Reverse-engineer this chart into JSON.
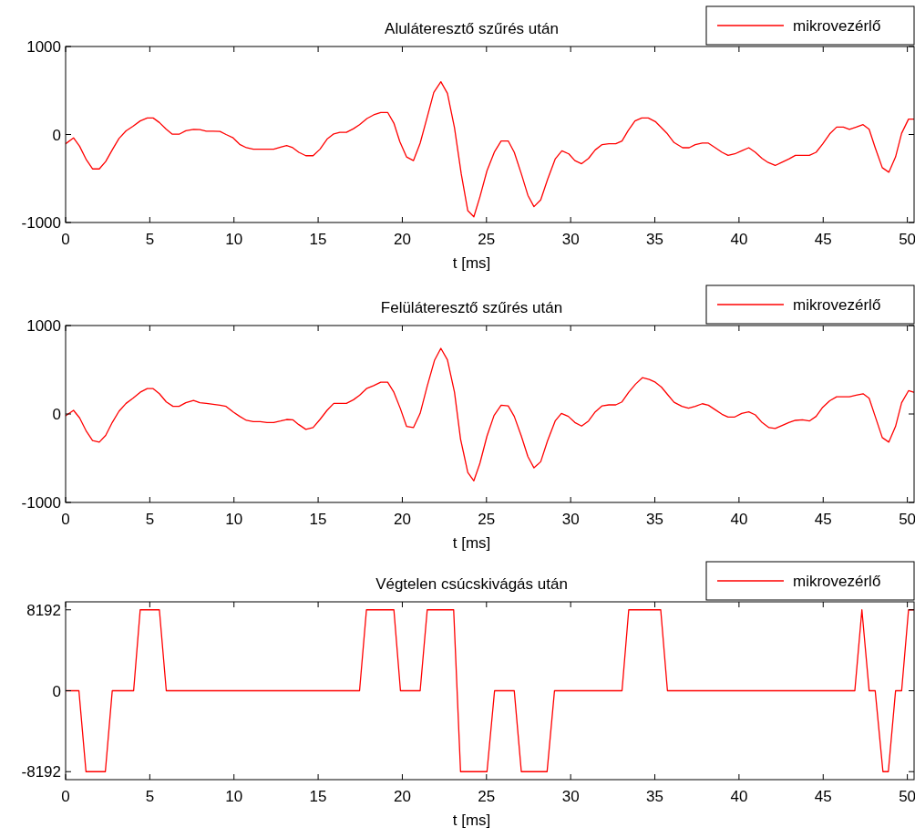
{
  "chart_data": [
    {
      "type": "line",
      "title": "Aluláteresztő szűrés után",
      "xlabel": "t [ms]",
      "xlim": [
        0,
        50.4
      ],
      "xticks": [
        0,
        5,
        10,
        15,
        20,
        25,
        30,
        35,
        40,
        45,
        50
      ],
      "ylim": [
        -1000,
        1000
      ],
      "yticks": [
        -1000,
        0,
        1000
      ],
      "legend": "top right",
      "series": [
        {
          "name": "mikrovezérlő",
          "color": "#ff0000",
          "x": [
            0,
            0.47,
            0.83,
            1.24,
            1.6,
            2.0,
            2.38,
            2.77,
            3.17,
            3.59,
            4.0,
            4.43,
            4.85,
            5.2,
            5.57,
            5.98,
            6.34,
            6.74,
            7.14,
            7.6,
            7.97,
            8.36,
            8.76,
            9.17,
            9.53,
            9.95,
            10.34,
            10.74,
            11.15,
            11.96,
            12.36,
            12.77,
            13.13,
            13.49,
            13.85,
            14.27,
            14.7,
            15.11,
            15.53,
            15.93,
            16.29,
            16.68,
            17.1,
            17.46,
            17.9,
            18.3,
            18.72,
            19.13,
            19.5,
            19.85,
            20.25,
            20.66,
            21.06,
            21.48,
            21.87,
            22.29,
            22.68,
            23.1,
            23.5,
            23.89,
            24.25,
            24.61,
            25.03,
            25.48,
            25.87,
            26.29,
            26.65,
            27.07,
            27.46,
            27.82,
            28.22,
            28.63,
            29.08,
            29.48,
            29.89,
            30.25,
            30.65,
            31.06,
            31.46,
            31.87,
            32.27,
            32.68,
            33.05,
            33.41,
            33.82,
            34.22,
            34.61,
            35.03,
            35.39,
            35.75,
            36.14,
            36.65,
            37.04,
            37.4,
            37.82,
            38.18,
            38.59,
            38.99,
            39.35,
            39.75,
            40.16,
            40.58,
            40.97,
            41.37,
            41.73,
            42.15,
            42.56,
            42.96,
            43.35,
            43.77,
            44.18,
            44.58,
            44.97,
            45.39,
            45.8,
            46.2,
            46.56,
            46.96,
            47.37,
            47.73,
            48.09,
            48.51,
            48.9,
            49.3,
            49.66,
            50.07,
            50.38
          ],
          "values": [
            -105,
            -38,
            -133,
            -290,
            -391,
            -391,
            -307,
            -175,
            -45,
            42,
            94,
            154,
            188,
            188,
            136,
            59,
            3,
            3,
            42,
            59,
            56,
            38,
            38,
            35,
            0,
            -38,
            -112,
            -150,
            -167,
            -167,
            -167,
            -143,
            -126,
            -150,
            -202,
            -241,
            -241,
            -167,
            -52,
            7,
            24,
            24,
            66,
            112,
            181,
            223,
            251,
            251,
            129,
            -80,
            -255,
            -297,
            -98,
            199,
            478,
            600,
            468,
            77,
            -447,
            -866,
            -935,
            -708,
            -412,
            -195,
            -73,
            -73,
            -202,
            -447,
            -691,
            -820,
            -743,
            -510,
            -279,
            -185,
            -220,
            -297,
            -332,
            -272,
            -175,
            -115,
            -105,
            -105,
            -73,
            42,
            154,
            188,
            188,
            147,
            77,
            7,
            -91,
            -150,
            -150,
            -115,
            -98,
            -98,
            -150,
            -202,
            -237,
            -220,
            -185,
            -150,
            -202,
            -272,
            -318,
            -352,
            -314,
            -279,
            -237,
            -237,
            -237,
            -202,
            -108,
            7,
            84,
            84,
            59,
            84,
            112,
            59,
            -150,
            -377,
            -429,
            -255,
            14,
            175,
            175
          ]
        }
      ]
    },
    {
      "type": "line",
      "title": "Felüláteresztő szűrés után",
      "xlabel": "t [ms]",
      "xlim": [
        0,
        50.4
      ],
      "xticks": [
        0,
        5,
        10,
        15,
        20,
        25,
        30,
        35,
        40,
        45,
        50
      ],
      "ylim": [
        -1000,
        1000
      ],
      "yticks": [
        -1000,
        0,
        1000
      ],
      "legend": "top right",
      "series": [
        {
          "name": "mikrovezérlő",
          "color": "#ff0000",
          "x": [
            0,
            0.47,
            0.83,
            1.24,
            1.6,
            2.0,
            2.38,
            2.77,
            3.17,
            3.59,
            4.0,
            4.43,
            4.85,
            5.2,
            5.57,
            5.98,
            6.38,
            6.74,
            7.14,
            7.6,
            7.97,
            8.36,
            8.76,
            9.17,
            9.53,
            9.95,
            10.34,
            10.74,
            11.15,
            11.56,
            11.96,
            12.36,
            12.77,
            13.13,
            13.49,
            13.85,
            14.27,
            14.7,
            15.11,
            15.53,
            15.93,
            16.32,
            16.68,
            17.1,
            17.46,
            17.87,
            18.3,
            18.72,
            19.13,
            19.5,
            19.89,
            20.25,
            20.66,
            21.06,
            21.48,
            21.91,
            22.29,
            22.68,
            23.1,
            23.46,
            23.89,
            24.25,
            24.61,
            25.03,
            25.45,
            25.87,
            26.29,
            26.65,
            27.07,
            27.46,
            27.82,
            28.22,
            28.63,
            29.08,
            29.45,
            29.86,
            30.25,
            30.65,
            31.06,
            31.46,
            31.87,
            32.27,
            32.68,
            33.05,
            33.45,
            33.86,
            34.26,
            34.67,
            35.03,
            35.39,
            35.75,
            36.14,
            36.61,
            37.0,
            37.4,
            37.82,
            38.18,
            38.59,
            38.99,
            39.35,
            39.75,
            40.16,
            40.58,
            40.97,
            41.37,
            41.78,
            42.15,
            42.56,
            42.96,
            43.35,
            43.77,
            44.18,
            44.58,
            44.97,
            45.39,
            45.8,
            46.2,
            46.56,
            46.96,
            47.37,
            47.73,
            48.09,
            48.51,
            48.9,
            49.3,
            49.66,
            50.07,
            50.38
          ],
          "values": [
            -21,
            41,
            -44,
            -198,
            -301,
            -318,
            -243,
            -96,
            31,
            120,
            178,
            246,
            287,
            287,
            229,
            137,
            86,
            86,
            127,
            154,
            127,
            120,
            109,
            99,
            86,
            24,
            -27,
            -72,
            -86,
            -86,
            -96,
            -96,
            -79,
            -62,
            -65,
            -120,
            -174,
            -154,
            -62,
            41,
            120,
            120,
            120,
            161,
            212,
            287,
            321,
            359,
            359,
            246,
            58,
            -140,
            -154,
            7,
            315,
            605,
            742,
            612,
            246,
            -284,
            -660,
            -756,
            -557,
            -250,
            -17,
            99,
            92,
            -27,
            -250,
            -482,
            -609,
            -540,
            -301,
            -79,
            7,
            -27,
            -96,
            -137,
            -79,
            24,
            92,
            103,
            103,
            137,
            246,
            339,
            410,
            390,
            359,
            304,
            222,
            133,
            86,
            65,
            86,
            116,
            99,
            48,
            -3,
            -34,
            -34,
            7,
            24,
            -10,
            -96,
            -154,
            -164,
            -130,
            -96,
            -72,
            -65,
            -79,
            -27,
            75,
            150,
            195,
            195,
            195,
            212,
            229,
            178,
            -27,
            -267,
            -318,
            -140,
            127,
            263,
            246
          ]
        }
      ]
    },
    {
      "type": "line",
      "title": "Végtelen csúcskivágás után",
      "xlabel": "t [ms]",
      "xlim": [
        0,
        50.4
      ],
      "xticks": [
        0,
        5,
        10,
        15,
        20,
        25,
        30,
        35,
        40,
        45,
        50
      ],
      "ylim": [
        -9000,
        9000
      ],
      "yticks": [
        -8192,
        0,
        8192
      ],
      "legend": "top right",
      "series": [
        {
          "name": "mikrovezérlő",
          "color": "#ff0000",
          "x": [
            0,
            0.79,
            1.21,
            2.36,
            2.77,
            4.04,
            4.43,
            5.57,
            5.98,
            17.46,
            17.87,
            19.5,
            19.89,
            21.06,
            21.48,
            23.05,
            23.46,
            25.03,
            25.48,
            26.65,
            27.07,
            28.6,
            29.04,
            33.05,
            33.45,
            35.35,
            35.75,
            46.88,
            47.3,
            47.73,
            48.09,
            48.55,
            48.87,
            49.3,
            49.66,
            50.07,
            50.38
          ],
          "values": [
            0,
            0,
            -8192,
            -8192,
            0,
            0,
            8192,
            8192,
            0,
            0,
            8192,
            8192,
            0,
            0,
            8192,
            8192,
            -8192,
            -8192,
            0,
            0,
            -8192,
            -8192,
            0,
            0,
            8192,
            8192,
            0,
            0,
            8192,
            0,
            0,
            -8192,
            -8192,
            0,
            0,
            8192,
            8192
          ]
        }
      ]
    }
  ]
}
